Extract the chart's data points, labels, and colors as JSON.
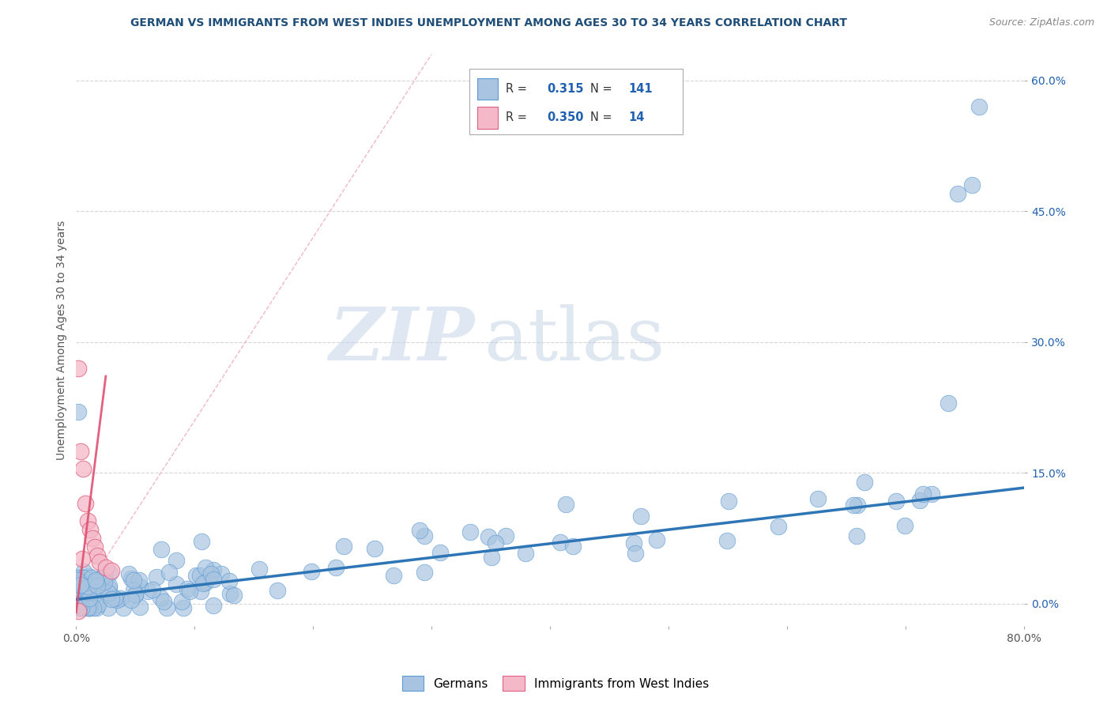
{
  "title": "GERMAN VS IMMIGRANTS FROM WEST INDIES UNEMPLOYMENT AMONG AGES 30 TO 34 YEARS CORRELATION CHART",
  "source": "Source: ZipAtlas.com",
  "ylabel": "Unemployment Among Ages 30 to 34 years",
  "xlim": [
    0.0,
    0.8
  ],
  "ylim": [
    -0.025,
    0.63
  ],
  "xticks": [
    0.0,
    0.1,
    0.2,
    0.3,
    0.4,
    0.5,
    0.6,
    0.7,
    0.8
  ],
  "xticklabels": [
    "0.0%",
    "",
    "",
    "",
    "",
    "",
    "",
    "",
    "80.0%"
  ],
  "yticks": [
    0.0,
    0.15,
    0.3,
    0.45,
    0.6
  ],
  "yticklabels": [
    "0.0%",
    "15.0%",
    "30.0%",
    "45.0%",
    "60.0%"
  ],
  "blue_color": "#a8c4e0",
  "blue_edge_color": "#5b9bd5",
  "blue_line_color": "#2e75b6",
  "pink_color": "#f4b8c8",
  "pink_edge_color": "#e06080",
  "pink_line_color": "#e05070",
  "diag_color": "#f0b0c0",
  "R_blue": "0.315",
  "N_blue": "141",
  "R_pink": "0.350",
  "N_pink": "14",
  "legend_label_blue": "Germans",
  "legend_label_pink": "Immigrants from West Indies",
  "watermark_zip": "ZIP",
  "watermark_atlas": "atlas",
  "watermark_color_zip": "#c5d5e8",
  "watermark_color_atlas": "#b8cce0",
  "background_color": "#ffffff",
  "grid_color": "#cccccc",
  "title_color": "#1f4e79",
  "source_color": "#888888",
  "value_color": "#2060b0",
  "seed": 42,
  "blue_slope": 0.16,
  "blue_intercept": 0.005,
  "pink_slope": 4.5,
  "pink_intercept": 0.05
}
